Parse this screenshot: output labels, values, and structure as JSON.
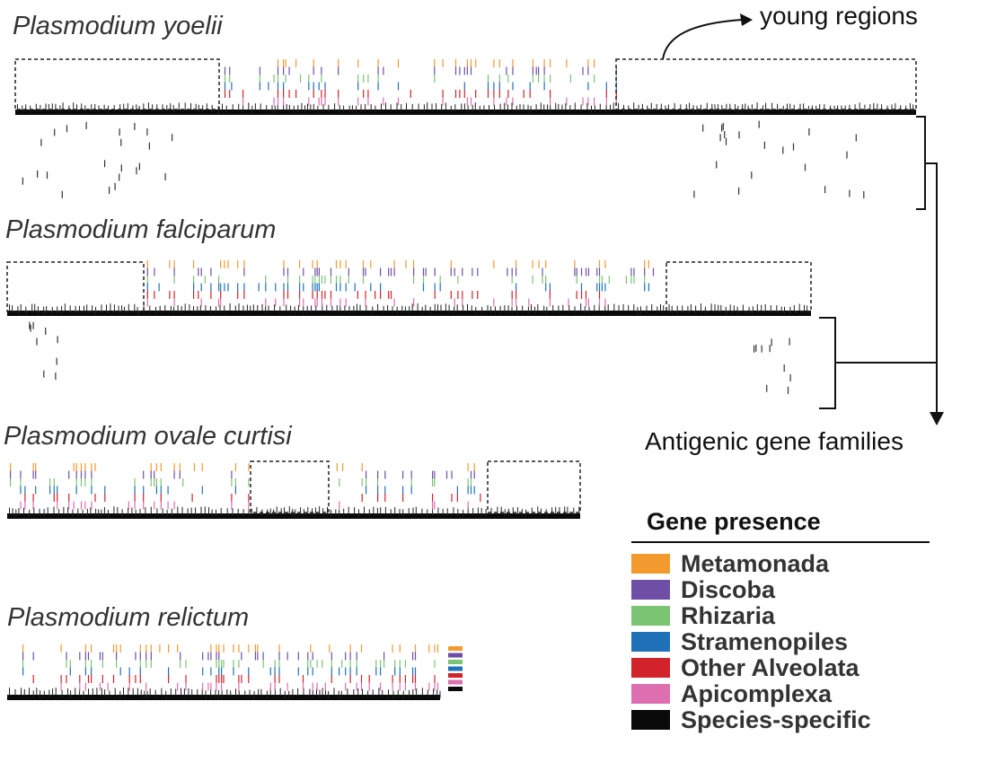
{
  "species": [
    {
      "name": "Plasmodium yoelii"
    },
    {
      "name": "Plasmodium falciparum"
    },
    {
      "name": "Plasmodium ovale curtisi"
    },
    {
      "name": "Plasmodium relictum"
    }
  ],
  "annotations": {
    "young_regions": "young regions",
    "antigenic": "Antigenic gene families"
  },
  "legend": {
    "title": "Gene presence",
    "items": [
      {
        "label": "Metamonada",
        "color": "#f39a2f"
      },
      {
        "label": "Discoba",
        "color": "#6f4fa6"
      },
      {
        "label": "Rhizaria",
        "color": "#7bc474"
      },
      {
        "label": "Stramenopiles",
        "color": "#1f72b8"
      },
      {
        "label": "Other Alveolata",
        "color": "#d2232a"
      },
      {
        "label": "Apicomplexa",
        "color": "#dd6fb0"
      },
      {
        "label": "Species-specific",
        "color": "#0a0a0a"
      }
    ]
  }
}
